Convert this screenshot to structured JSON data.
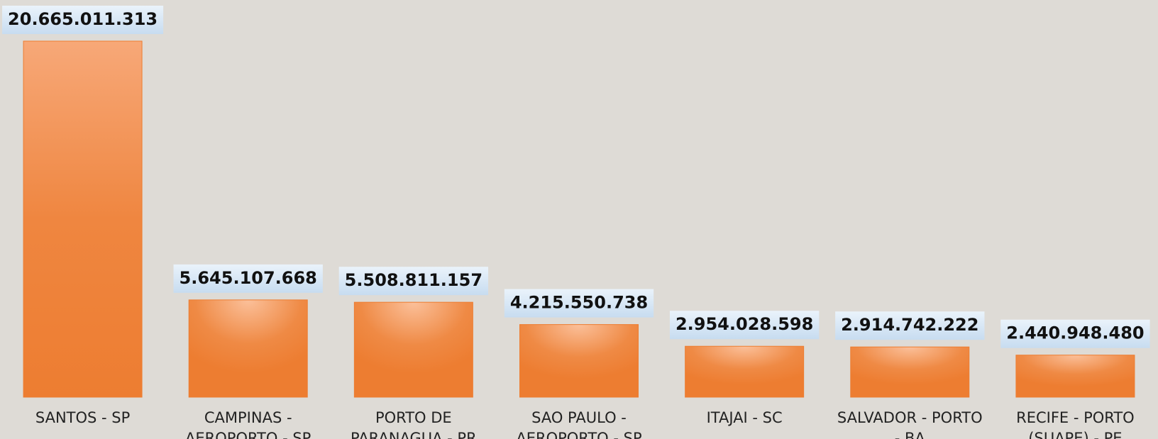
{
  "chart_data": {
    "type": "bar",
    "categories": [
      "SANTOS - SP",
      "CAMPINAS - AEROPORTO - SP",
      "PORTO DE PARANAGUA - PR",
      "SAO PAULO - AEROPORTO - SP",
      "ITAJAI - SC",
      "SALVADOR - PORTO - BA",
      "RECIFE - PORTO (SUAPE) - PE"
    ],
    "values": [
      20665011313,
      5645107668,
      5508811157,
      4215550738,
      2954028598,
      2914742222,
      2440948480
    ],
    "value_labels": [
      "20.665.011.313",
      "5.645.107.668",
      "5.508.811.157",
      "4.215.550.738",
      "2.954.028.598",
      "2.914.742.222",
      "2.440.948.480"
    ],
    "color": "#ed7d31"
  }
}
